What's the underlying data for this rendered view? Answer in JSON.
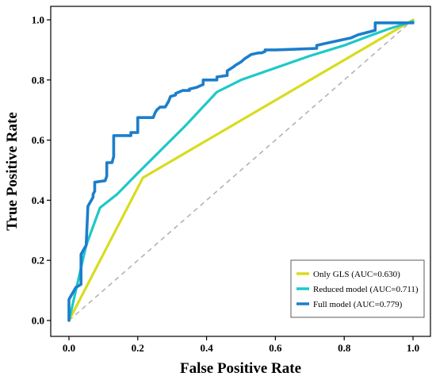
{
  "chart_data": {
    "type": "line",
    "title": "",
    "xlabel": "False Positive Rate",
    "ylabel": "True Positive Rate",
    "xlim": [
      0,
      1
    ],
    "ylim": [
      0,
      1
    ],
    "x_ticks": [
      "0.0",
      "0.2",
      "0.4",
      "0.6",
      "0.8",
      "1.0"
    ],
    "y_ticks": [
      "0.0",
      "0.2",
      "0.4",
      "0.6",
      "0.8",
      "1.0"
    ],
    "grid": false,
    "legend_position": "bottom-right",
    "reference_line": {
      "x": [
        0,
        1
      ],
      "y": [
        0,
        1
      ],
      "color": "#b3b3b3",
      "style": "dashed"
    },
    "series": [
      {
        "name": "Only GLS (AUC=0.630)",
        "color": "#d9dc1e",
        "x": [
          0,
          0.215,
          1
        ],
        "y": [
          0,
          0.475,
          1
        ]
      },
      {
        "name": "Reduced model (AUC=0.711)",
        "color": "#1ec8c8",
        "x": [
          0,
          0.02,
          0.05,
          0.09,
          0.14,
          0.2,
          0.27,
          0.34,
          0.43,
          0.5,
          0.6,
          0.7,
          0.8,
          0.87,
          0.93,
          1.0
        ],
        "y": [
          0,
          0.1,
          0.25,
          0.375,
          0.42,
          0.49,
          0.57,
          0.65,
          0.76,
          0.8,
          0.84,
          0.88,
          0.915,
          0.945,
          0.97,
          0.995
        ]
      },
      {
        "name": "Full model (AUC=0.779)",
        "color": "#1c7ecb",
        "x": [
          0,
          0,
          0.01,
          0.02,
          0.02,
          0.035,
          0.035,
          0.045,
          0.05,
          0.055,
          0.055,
          0.07,
          0.07,
          0.075,
          0.075,
          0.105,
          0.11,
          0.11,
          0.125,
          0.13,
          0.13,
          0.18,
          0.18,
          0.2,
          0.2,
          0.245,
          0.25,
          0.255,
          0.265,
          0.28,
          0.29,
          0.295,
          0.31,
          0.31,
          0.33,
          0.35,
          0.35,
          0.37,
          0.38,
          0.39,
          0.39,
          0.43,
          0.43,
          0.46,
          0.46,
          0.48,
          0.485,
          0.5,
          0.51,
          0.51,
          0.53,
          0.55,
          0.56,
          0.57,
          0.57,
          0.6,
          0.6,
          0.72,
          0.72,
          0.74,
          0.76,
          0.78,
          0.8,
          0.82,
          0.84,
          0.89,
          0.89,
          1.0
        ],
        "y": [
          0,
          0.07,
          0.09,
          0.11,
          0.11,
          0.12,
          0.22,
          0.24,
          0.25,
          0.38,
          0.38,
          0.41,
          0.42,
          0.43,
          0.46,
          0.465,
          0.48,
          0.525,
          0.525,
          0.545,
          0.615,
          0.615,
          0.625,
          0.625,
          0.675,
          0.675,
          0.69,
          0.7,
          0.71,
          0.71,
          0.73,
          0.745,
          0.75,
          0.755,
          0.765,
          0.765,
          0.77,
          0.775,
          0.78,
          0.785,
          0.8,
          0.8,
          0.81,
          0.815,
          0.83,
          0.845,
          0.85,
          0.86,
          0.87,
          0.87,
          0.885,
          0.89,
          0.89,
          0.895,
          0.9,
          0.9,
          0.9,
          0.905,
          0.915,
          0.92,
          0.925,
          0.93,
          0.935,
          0.94,
          0.95,
          0.965,
          0.99,
          0.99
        ]
      }
    ]
  }
}
